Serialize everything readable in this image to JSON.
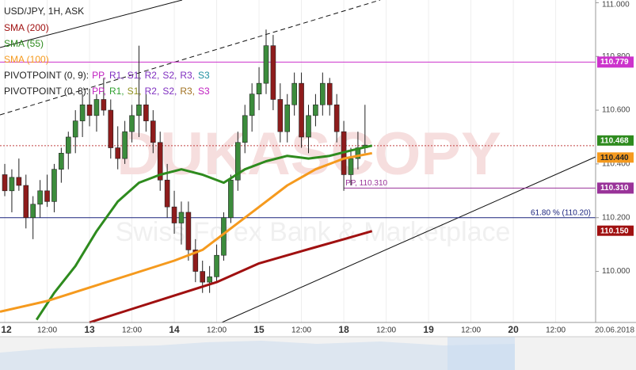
{
  "chart_data": {
    "type": "candlestick",
    "title": "USD/JPY, 1H, ASK",
    "watermark": "DUKASCOPY",
    "watermark_subtitle": "Swiss Forex Bank & Marketplace",
    "x_axis_date": "20.06.2018",
    "xlim": [
      -1.35,
      167.3
    ],
    "ylim": [
      109.81,
      111.01
    ],
    "xticks": [
      {
        "value": 0,
        "label": "12"
      },
      {
        "value": 12,
        "label": "12:00"
      },
      {
        "value": 24,
        "label": "13"
      },
      {
        "value": 36,
        "label": "12:00"
      },
      {
        "value": 48,
        "label": "14"
      },
      {
        "value": 60,
        "label": "12:00"
      },
      {
        "value": 72,
        "label": "15"
      },
      {
        "value": 84,
        "label": "12:00"
      },
      {
        "value": 96,
        "label": "18"
      },
      {
        "value": 108,
        "label": "12:00"
      },
      {
        "value": 120,
        "label": "19"
      },
      {
        "value": 132,
        "label": "12:00"
      },
      {
        "value": 144,
        "label": "20"
      },
      {
        "value": 156,
        "label": "12:00"
      }
    ],
    "yticks": [
      {
        "value": 111,
        "label": "111.000"
      },
      {
        "value": 110.8,
        "label": "110.800"
      },
      {
        "value": 110.6,
        "label": "110.600"
      },
      {
        "value": 110.4,
        "label": "110.400"
      },
      {
        "value": 110.2,
        "label": "110.200"
      },
      {
        "value": 110,
        "label": "110.000"
      }
    ],
    "up_color": "#3c8c3c",
    "down_color": "#8e1c1c",
    "x": [
      0,
      2,
      4,
      6,
      8,
      10,
      12,
      14,
      16,
      18,
      20,
      22,
      24,
      26,
      28,
      30,
      32,
      34,
      36,
      38,
      40,
      42,
      44,
      46,
      48,
      50,
      52,
      54,
      56,
      58,
      60,
      62,
      64,
      66,
      68,
      70,
      72,
      74,
      76,
      78,
      80,
      82,
      84,
      86,
      88,
      90,
      92,
      94,
      96,
      98,
      100,
      102
    ],
    "open": [
      110.36,
      110.3,
      110.35,
      110.32,
      110.2,
      110.25,
      110.3,
      110.26,
      110.38,
      110.44,
      110.5,
      110.56,
      110.62,
      110.58,
      110.64,
      110.6,
      110.46,
      110.42,
      110.52,
      110.58,
      110.62,
      110.56,
      110.48,
      110.34,
      110.24,
      110.18,
      110.22,
      110.08,
      110.0,
      109.96,
      109.98,
      110.06,
      110.2,
      110.34,
      110.48,
      110.58,
      110.66,
      110.7,
      110.84,
      110.64,
      110.52,
      110.62,
      110.7,
      110.5,
      110.58,
      110.62,
      110.7,
      110.62,
      110.52,
      110.36,
      110.42,
      110.46
    ],
    "high": [
      110.4,
      110.38,
      110.42,
      110.36,
      110.28,
      110.34,
      110.36,
      110.4,
      110.46,
      110.52,
      110.6,
      110.66,
      110.68,
      110.66,
      110.72,
      110.64,
      110.54,
      110.56,
      110.62,
      110.84,
      110.66,
      110.6,
      110.52,
      110.4,
      110.3,
      110.26,
      110.26,
      110.12,
      110.04,
      110.02,
      110.1,
      110.22,
      110.36,
      110.52,
      110.62,
      110.7,
      110.76,
      110.9,
      110.88,
      110.7,
      110.66,
      110.74,
      110.74,
      110.62,
      110.66,
      110.74,
      110.72,
      110.66,
      110.56,
      110.46,
      110.52,
      110.62
    ],
    "low": [
      110.28,
      110.22,
      110.3,
      110.16,
      110.12,
      110.2,
      110.24,
      110.22,
      110.33,
      110.38,
      110.44,
      110.5,
      110.54,
      110.52,
      110.58,
      110.42,
      110.38,
      110.4,
      110.48,
      110.5,
      110.52,
      110.44,
      110.3,
      110.2,
      110.14,
      110.1,
      110.04,
      109.96,
      109.92,
      109.92,
      109.96,
      110.04,
      110.18,
      110.3,
      110.44,
      110.52,
      110.6,
      110.66,
      110.6,
      110.48,
      110.48,
      110.58,
      110.46,
      110.44,
      110.54,
      110.58,
      110.58,
      110.48,
      110.3,
      110.32,
      110.38,
      110.44
    ],
    "close": [
      110.3,
      110.35,
      110.32,
      110.2,
      110.25,
      110.3,
      110.26,
      110.38,
      110.44,
      110.5,
      110.56,
      110.62,
      110.58,
      110.64,
      110.6,
      110.46,
      110.42,
      110.52,
      110.58,
      110.62,
      110.56,
      110.48,
      110.34,
      110.24,
      110.18,
      110.22,
      110.08,
      110.0,
      109.96,
      109.98,
      110.06,
      110.2,
      110.34,
      110.48,
      110.58,
      110.66,
      110.7,
      110.84,
      110.64,
      110.52,
      110.62,
      110.7,
      110.5,
      110.58,
      110.62,
      110.7,
      110.62,
      110.52,
      110.36,
      110.42,
      110.46,
      110.47
    ],
    "series": [
      {
        "name": "SMA (200)",
        "color": "#a01010",
        "x": [
          24,
          36,
          48,
          60,
          72,
          80,
          88,
          96,
          104
        ],
        "values": [
          109.81,
          109.86,
          109.91,
          109.96,
          110.03,
          110.06,
          110.09,
          110.12,
          110.15
        ],
        "end_label": "110.150"
      },
      {
        "name": "SMA (55)",
        "color": "#2e8b1e",
        "x": [
          9,
          14,
          20,
          26,
          32,
          38,
          44,
          50,
          56,
          62,
          68,
          74,
          80,
          86,
          92,
          98,
          104
        ],
        "values": [
          109.82,
          109.92,
          110.02,
          110.15,
          110.26,
          110.33,
          110.36,
          110.38,
          110.36,
          110.33,
          110.38,
          110.41,
          110.43,
          110.42,
          110.43,
          110.45,
          110.468
        ],
        "end_label": "110.468"
      },
      {
        "name": "SMA (100)",
        "color": "#f59a1e",
        "x": [
          -1.35,
          12,
          24,
          36,
          48,
          56,
          64,
          72,
          80,
          88,
          96,
          104
        ],
        "values": [
          109.85,
          109.89,
          109.94,
          109.99,
          110.04,
          110.08,
          110.16,
          110.24,
          110.32,
          110.38,
          110.42,
          110.44
        ],
        "end_label": "110.440"
      }
    ],
    "pivot_rows": [
      {
        "label": "PIVOTPOINT (0, 9):",
        "items": [
          {
            "text": "PP,",
            "color": "#c020c0"
          },
          {
            "text": "R1,",
            "color": "#8030c0"
          },
          {
            "text": "S1,",
            "color": "#8030c0"
          },
          {
            "text": "R2,",
            "color": "#8030c0"
          },
          {
            "text": "S2,",
            "color": "#8030c0"
          },
          {
            "text": "R3,",
            "color": "#8030c0"
          },
          {
            "text": "S3",
            "color": "#208fa0"
          }
        ]
      },
      {
        "label": "PIVOTPOINT (0, 8):",
        "items": [
          {
            "text": "PP,",
            "color": "#c020c0"
          },
          {
            "text": "R1,",
            "color": "#30a030"
          },
          {
            "text": "S1,",
            "color": "#909020"
          },
          {
            "text": "R2,",
            "color": "#8030c0"
          },
          {
            "text": "S2,",
            "color": "#8030c0"
          },
          {
            "text": "R3,",
            "color": "#a07020"
          },
          {
            "text": "S3",
            "color": "#c020c0"
          }
        ]
      }
    ],
    "levels": [
      {
        "value": 110.779,
        "label": "110.779",
        "color": "#cc33cc",
        "dash": "none"
      },
      {
        "value": 110.468,
        "color": "#c04040",
        "dash": "2,2"
      },
      {
        "value": 110.31,
        "label": "110.310",
        "color": "#993399",
        "dash": "none",
        "text": "PP, 110.310",
        "from": 96
      },
      {
        "value": 110.2,
        "color": "#1a237e",
        "dash": "none",
        "text": "61.80 % (110.20)"
      }
    ]
  }
}
